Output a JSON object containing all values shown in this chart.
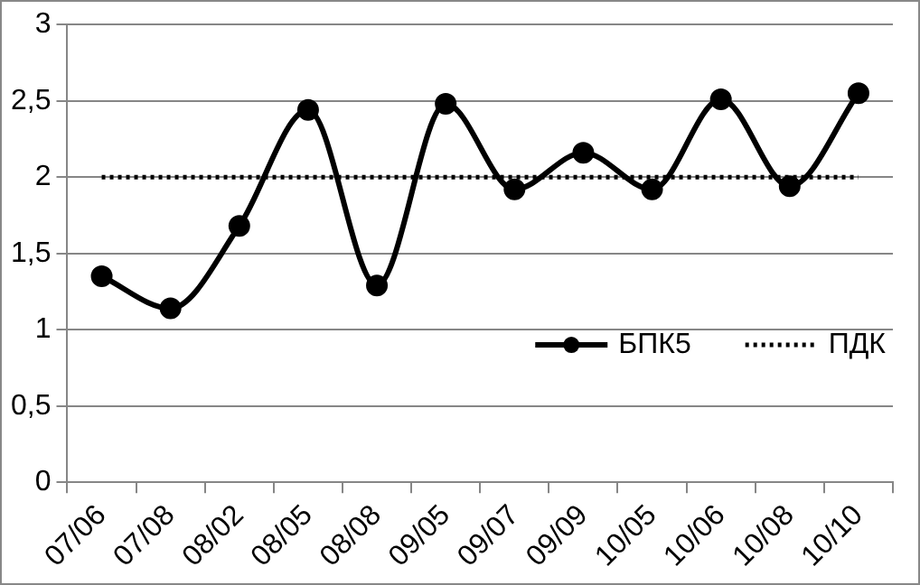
{
  "chart_data": {
    "type": "line",
    "categories": [
      "07/06",
      "07/08",
      "08/02",
      "08/05",
      "08/08",
      "09/05",
      "09/07",
      "09/09",
      "10/05",
      "10/06",
      "10/08",
      "10/10"
    ],
    "series": [
      {
        "name": "БПК5",
        "color": "#000000",
        "marker": "circle",
        "line_style": "solid",
        "values": [
          1.35,
          1.14,
          1.68,
          2.44,
          1.29,
          2.48,
          1.92,
          2.16,
          1.92,
          2.51,
          1.94,
          2.55
        ]
      },
      {
        "name": "ПДК",
        "color": "#000000",
        "marker": "none",
        "line_style": "dotted",
        "values": [
          2,
          2,
          2,
          2,
          2,
          2,
          2,
          2,
          2,
          2,
          2,
          2
        ]
      }
    ],
    "ylim": [
      0,
      3
    ],
    "yticks": [
      {
        "value": 0,
        "label": "0"
      },
      {
        "value": 0.5,
        "label": "0,5"
      },
      {
        "value": 1,
        "label": "1"
      },
      {
        "value": 1.5,
        "label": "1,5"
      },
      {
        "value": 2,
        "label": "2"
      },
      {
        "value": 2.5,
        "label": "2,5"
      },
      {
        "value": 3,
        "label": "3"
      }
    ],
    "grid": "y",
    "legend": "right"
  }
}
